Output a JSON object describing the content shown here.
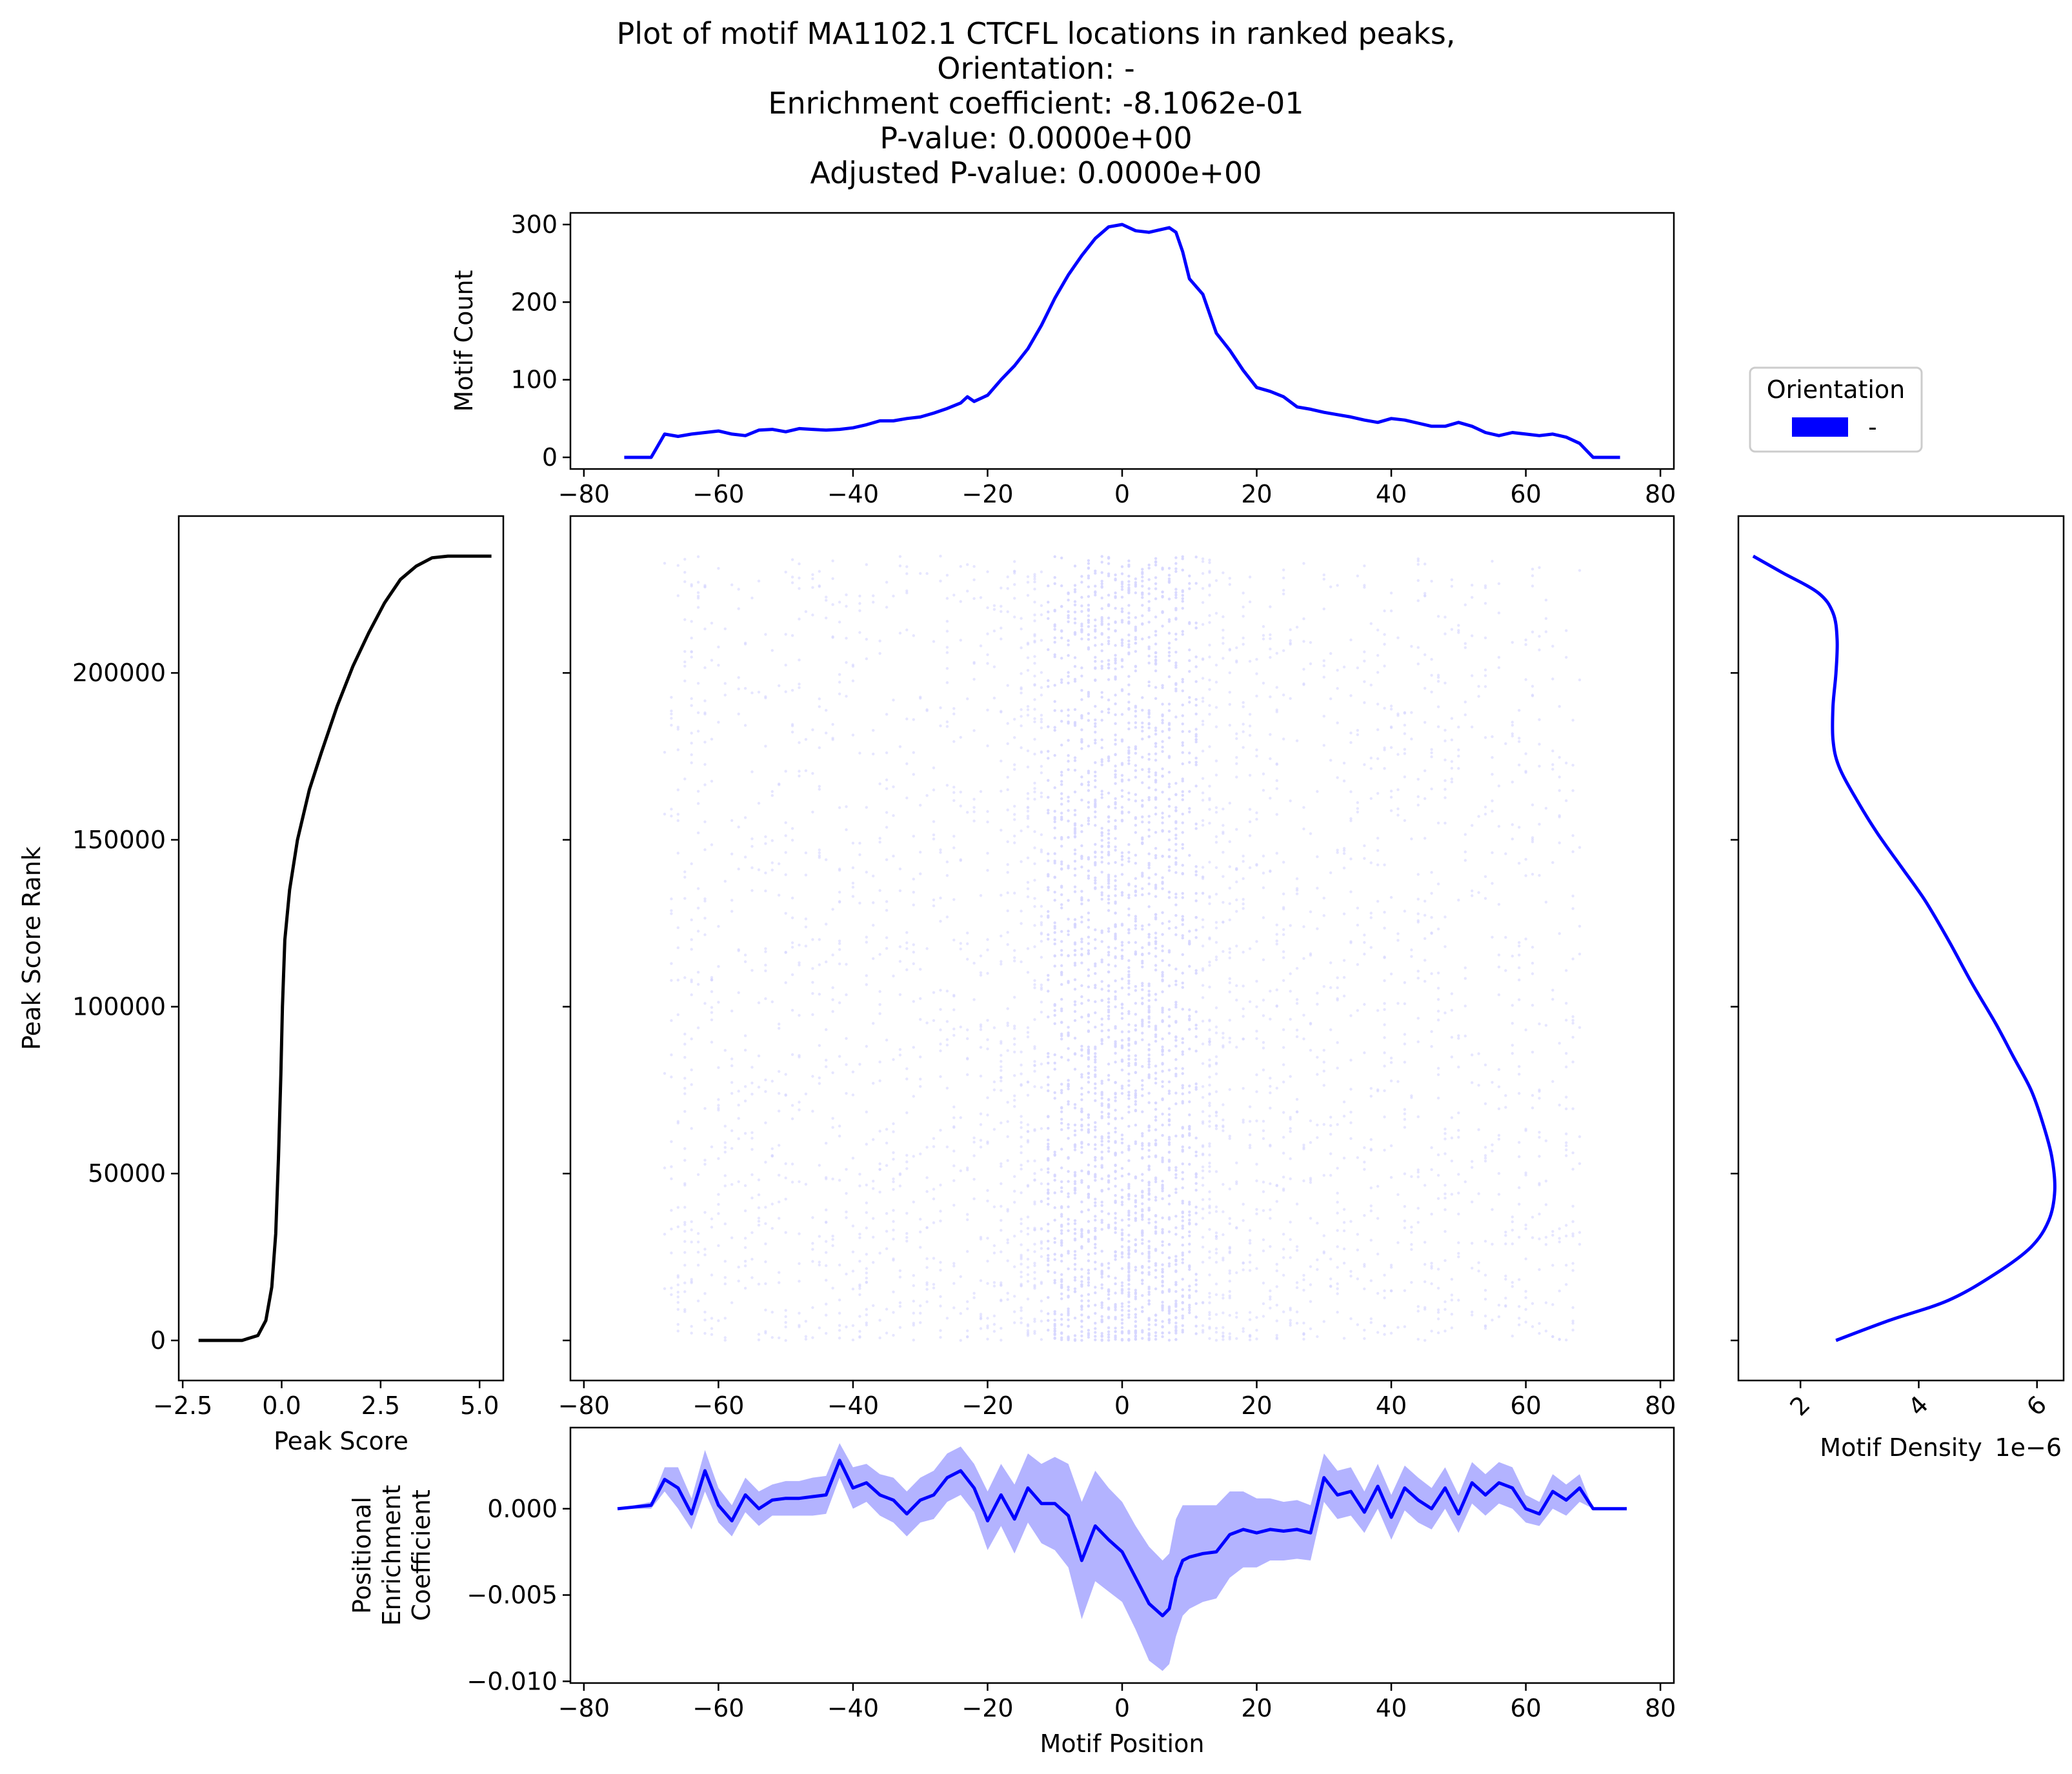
{
  "title_lines": [
    "Plot of motif MA1102.1 CTCFL locations in ranked peaks,",
    "Orientation: -",
    "Enrichment coefficient: -8.1062e-01",
    "P-value: 0.0000e+00",
    "Adjusted P-value: 0.0000e+00"
  ],
  "colors": {
    "line": "#0000ff",
    "band": "#b3b3ff",
    "rank_curve": "#000000",
    "scatter": "#d6d6ff"
  },
  "legend": {
    "title": "Orientation",
    "entries": [
      "-"
    ]
  },
  "chart_data": [
    {
      "name": "motif_count_panel",
      "type": "line",
      "xlabel": "",
      "ylabel": "Motif Count",
      "xlim": [
        -82,
        82
      ],
      "ylim": [
        -15,
        315
      ],
      "xticks": [
        -80,
        -60,
        -40,
        -20,
        0,
        20,
        40,
        60,
        80
      ],
      "yticks": [
        0,
        100,
        200,
        300
      ],
      "series": [
        {
          "x": [
            -74,
            -70,
            -68,
            -66,
            -64,
            -62,
            -60,
            -58,
            -56,
            -54,
            -52,
            -50,
            -48,
            -46,
            -44,
            -42,
            -40,
            -38,
            -36,
            -34,
            -32,
            -30,
            -28,
            -26,
            -24,
            -23,
            -22,
            -20,
            -18,
            -16,
            -14,
            -12,
            -10,
            -8,
            -6,
            -4,
            -2,
            0,
            2,
            4,
            6,
            7,
            8,
            9,
            10,
            12,
            14,
            16,
            18,
            20,
            22,
            24,
            26,
            28,
            30,
            32,
            34,
            36,
            38,
            40,
            42,
            44,
            46,
            48,
            50,
            52,
            54,
            56,
            58,
            60,
            62,
            64,
            66,
            68,
            70,
            74
          ],
          "values": [
            0,
            0,
            30,
            27,
            30,
            32,
            34,
            30,
            28,
            35,
            36,
            33,
            37,
            36,
            35,
            36,
            38,
            42,
            47,
            47,
            50,
            52,
            57,
            63,
            70,
            78,
            72,
            80,
            100,
            118,
            140,
            170,
            205,
            235,
            260,
            282,
            297,
            300,
            292,
            290,
            294,
            296,
            290,
            265,
            230,
            210,
            160,
            138,
            112,
            90,
            85,
            78,
            65,
            62,
            58,
            55,
            52,
            48,
            45,
            50,
            48,
            44,
            40,
            40,
            45,
            40,
            32,
            28,
            32,
            30,
            28,
            30,
            26,
            18,
            0,
            0
          ]
        }
      ]
    },
    {
      "name": "peak_score_rank_panel",
      "type": "line",
      "xlabel": "Peak Score",
      "ylabel": "Peak Score Rank",
      "xlim": [
        -2.6,
        5.6
      ],
      "ylim": [
        -12000,
        247000
      ],
      "xticks": [
        -2.5,
        0.0,
        2.5,
        5.0
      ],
      "xticklabels": [
        "−2.5",
        "0.0",
        "2.5",
        "5.0"
      ],
      "yticks": [
        0,
        50000,
        100000,
        150000,
        200000
      ],
      "series": [
        {
          "x": [
            -2.1,
            -1.0,
            -0.6,
            -0.4,
            -0.25,
            -0.15,
            -0.08,
            -0.02,
            0.02,
            0.08,
            0.2,
            0.4,
            0.7,
            1.0,
            1.4,
            1.8,
            2.2,
            2.6,
            3.0,
            3.4,
            3.8,
            4.2,
            4.6,
            5.3
          ],
          "values": [
            0,
            0,
            1500,
            6000,
            16000,
            32000,
            55000,
            80000,
            100000,
            120000,
            135000,
            150000,
            165000,
            176000,
            190000,
            202000,
            212000,
            221000,
            228000,
            232000,
            234500,
            235000,
            235000,
            235000
          ]
        }
      ]
    },
    {
      "name": "motif_scatter_panel",
      "type": "scatter",
      "xlabel": "",
      "ylabel": "",
      "xlim": [
        -82,
        82
      ],
      "ylim": [
        -12000,
        247000
      ],
      "xticks": [
        -80,
        -60,
        -40,
        -20,
        0,
        20,
        40,
        60,
        80
      ],
      "yticks": [
        0,
        50000,
        100000,
        150000,
        200000
      ],
      "x_range": [
        -68,
        68
      ],
      "y_range": [
        0,
        235000
      ]
    },
    {
      "name": "motif_density_panel",
      "type": "line",
      "xlabel": "Motif Density",
      "x_offset_label": "1e−6",
      "ylabel": "",
      "xlim": [
        0.95,
        6.45
      ],
      "ylim": [
        -12000,
        247000
      ],
      "xticks": [
        2,
        4,
        6
      ],
      "yticks": [
        0,
        50000,
        100000,
        150000,
        200000
      ],
      "series": [
        {
          "x": [
            2.6,
            3.5,
            4.5,
            5.3,
            5.9,
            6.2,
            6.3,
            6.25,
            6.1,
            5.9,
            5.6,
            5.3,
            4.9,
            4.5,
            4.1,
            3.7,
            3.3,
            2.95,
            2.65,
            2.55,
            2.55,
            2.6,
            2.62,
            2.55,
            2.3,
            1.7,
            1.2
          ],
          "values": [
            0,
            6000,
            12000,
            20000,
            28000,
            36000,
            45000,
            55000,
            65000,
            75000,
            85000,
            95000,
            107000,
            120000,
            132000,
            142000,
            152000,
            162000,
            172000,
            180000,
            190000,
            200000,
            210000,
            218000,
            224000,
            230000,
            235000
          ]
        }
      ]
    },
    {
      "name": "positional_enrichment_panel",
      "type": "line",
      "xlabel": "Motif Position",
      "ylabel_lines": [
        "Positional",
        "Enrichment",
        "Coefficient"
      ],
      "xlim": [
        -82,
        82
      ],
      "ylim": [
        -0.0101,
        0.0047
      ],
      "xticks": [
        -80,
        -60,
        -40,
        -20,
        0,
        20,
        40,
        60,
        80
      ],
      "yticks": [
        -0.01,
        -0.005,
        0.0
      ],
      "yticklabels": [
        "−0.010",
        "−0.005",
        "0.000"
      ],
      "series": [
        {
          "x": [
            -75,
            -70,
            -68,
            -66,
            -64,
            -62,
            -60,
            -58,
            -56,
            -54,
            -52,
            -50,
            -48,
            -46,
            -44,
            -42,
            -40,
            -38,
            -36,
            -34,
            -32,
            -30,
            -28,
            -26,
            -24,
            -22,
            -20,
            -18,
            -16,
            -14,
            -12,
            -10,
            -8,
            -6,
            -4,
            -2,
            0,
            2,
            4,
            6,
            7,
            8,
            9,
            10,
            12,
            14,
            16,
            18,
            20,
            22,
            24,
            26,
            28,
            30,
            32,
            34,
            36,
            38,
            40,
            42,
            44,
            46,
            48,
            50,
            52,
            54,
            56,
            58,
            60,
            62,
            64,
            66,
            68,
            70,
            75
          ],
          "values": [
            0.0,
            0.0002,
            0.0017,
            0.0012,
            -0.0003,
            0.0022,
            0.0002,
            -0.0007,
            0.0008,
            0.0,
            0.0005,
            0.0006,
            0.0006,
            0.0007,
            0.0008,
            0.0028,
            0.0012,
            0.0015,
            0.0008,
            0.0005,
            -0.0003,
            0.0005,
            0.0008,
            0.0018,
            0.0022,
            0.0012,
            -0.0007,
            0.0008,
            -0.0006,
            0.0012,
            0.0003,
            0.0003,
            -0.0004,
            -0.003,
            -0.001,
            -0.0018,
            -0.0025,
            -0.004,
            -0.0055,
            -0.0062,
            -0.0058,
            -0.004,
            -0.003,
            -0.0028,
            -0.0026,
            -0.0025,
            -0.0015,
            -0.0012,
            -0.0014,
            -0.0012,
            -0.0013,
            -0.0012,
            -0.0014,
            0.0018,
            0.0008,
            0.001,
            -0.0002,
            0.0013,
            -0.0005,
            0.0012,
            0.0005,
            0.0,
            0.0012,
            -0.0003,
            0.0015,
            0.0008,
            0.0015,
            0.0012,
            0.0,
            -0.0003,
            0.001,
            0.0005,
            0.0012,
            0.0,
            0.0
          ],
          "band_lower": [
            0.0,
            0.0,
            0.001,
            0.0,
            -0.0012,
            0.001,
            -0.0008,
            -0.0016,
            -0.0002,
            -0.001,
            -0.0004,
            -0.0004,
            -0.0004,
            -0.0004,
            -0.0003,
            0.0018,
            0.0,
            0.0004,
            -0.0004,
            -0.0008,
            -0.0016,
            -0.0008,
            -0.0006,
            0.0004,
            0.0008,
            -0.0002,
            -0.0024,
            -0.001,
            -0.0026,
            -0.0008,
            -0.002,
            -0.0024,
            -0.0034,
            -0.0064,
            -0.0042,
            -0.0048,
            -0.0054,
            -0.007,
            -0.0088,
            -0.0094,
            -0.009,
            -0.0074,
            -0.0062,
            -0.0058,
            -0.0054,
            -0.0052,
            -0.004,
            -0.0034,
            -0.0034,
            -0.003,
            -0.003,
            -0.0029,
            -0.003,
            0.0004,
            -0.0006,
            -0.0004,
            -0.0014,
            0.0,
            -0.0018,
            -0.0001,
            -0.0008,
            -0.0012,
            0.0,
            -0.0014,
            0.0003,
            -0.0004,
            0.0003,
            0.0,
            -0.0008,
            -0.001,
            0.0,
            -0.0004,
            0.0004,
            0.0,
            0.0
          ],
          "band_upper": [
            0.0,
            0.0004,
            0.0024,
            0.0024,
            0.0006,
            0.0034,
            0.0012,
            0.0002,
            0.0018,
            0.001,
            0.0014,
            0.0016,
            0.0016,
            0.0018,
            0.0019,
            0.0038,
            0.0024,
            0.0026,
            0.002,
            0.0018,
            0.001,
            0.0018,
            0.0022,
            0.0032,
            0.0036,
            0.0026,
            0.001,
            0.0026,
            0.0014,
            0.0032,
            0.0026,
            0.003,
            0.0026,
            0.0004,
            0.0022,
            0.0012,
            0.0004,
            -0.001,
            -0.0022,
            -0.003,
            -0.0026,
            -0.0006,
            0.0002,
            0.0002,
            0.0002,
            0.0002,
            0.001,
            0.001,
            0.0006,
            0.0006,
            0.0004,
            0.0005,
            0.0002,
            0.0032,
            0.0022,
            0.0024,
            0.001,
            0.0026,
            0.0008,
            0.0025,
            0.0018,
            0.0012,
            0.0024,
            0.0008,
            0.0027,
            0.002,
            0.0027,
            0.0024,
            0.0008,
            0.0004,
            0.002,
            0.0014,
            0.002,
            0.0,
            0.0
          ]
        }
      ]
    }
  ]
}
